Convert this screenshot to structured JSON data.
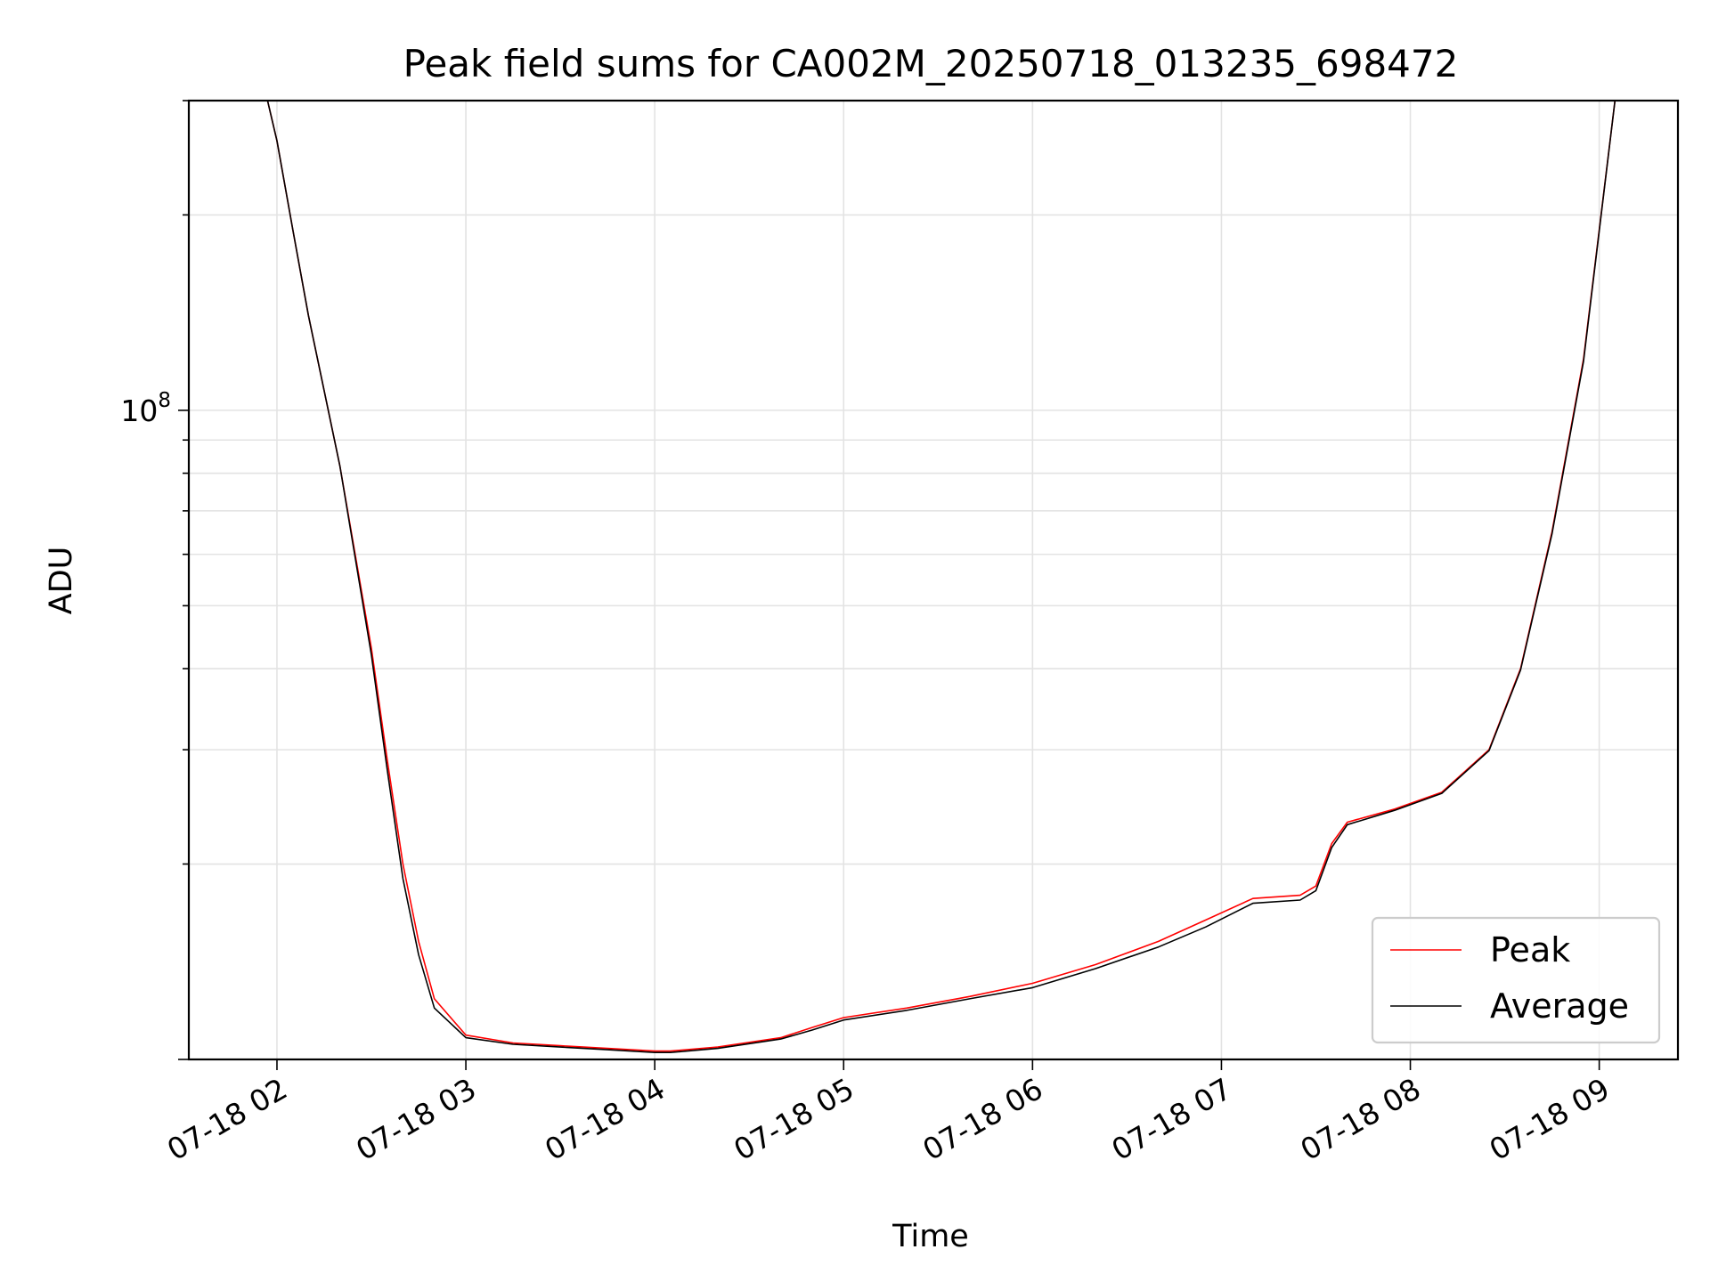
{
  "chart_data": {
    "type": "line",
    "title": "Peak field sums for CA002M_20250718_013235_698472",
    "xlabel": "Time",
    "ylabel": "ADU",
    "y_scale": "log",
    "ylim": [
      10000000.0,
      300000000.0
    ],
    "xlim": [
      "2025-07-18 01:32",
      "2025-07-18 09:25"
    ],
    "x_tick_labels": [
      "07-18 02",
      "07-18 03",
      "07-18 04",
      "07-18 05",
      "07-18 06",
      "07-18 07",
      "07-18 08",
      "07-18 09"
    ],
    "x_ticks": [
      "2025-07-18 02:00",
      "2025-07-18 03:00",
      "2025-07-18 04:00",
      "2025-07-18 05:00",
      "2025-07-18 06:00",
      "2025-07-18 07:00",
      "2025-07-18 08:00",
      "2025-07-18 09:00"
    ],
    "y_tick_labels": [
      {
        "base": "10",
        "exp": "8",
        "value": 100000000
      }
    ],
    "grid": true,
    "legend_position": "lower-right",
    "series": [
      {
        "name": "Peak",
        "color": "#ff0000",
        "x": [
          "2025-07-18 01:32",
          "2025-07-18 01:57",
          "2025-07-18 02:00",
          "2025-07-18 02:05",
          "2025-07-18 02:10",
          "2025-07-18 02:20",
          "2025-07-18 02:30",
          "2025-07-18 02:35",
          "2025-07-18 02:40",
          "2025-07-18 02:45",
          "2025-07-18 02:50",
          "2025-07-18 03:00",
          "2025-07-18 03:15",
          "2025-07-18 03:30",
          "2025-07-18 03:45",
          "2025-07-18 04:00",
          "2025-07-18 04:05",
          "2025-07-18 04:20",
          "2025-07-18 04:40",
          "2025-07-18 04:50",
          "2025-07-18 05:00",
          "2025-07-18 05:20",
          "2025-07-18 05:40",
          "2025-07-18 06:00",
          "2025-07-18 06:20",
          "2025-07-18 06:40",
          "2025-07-18 06:55",
          "2025-07-18 07:10",
          "2025-07-18 07:25",
          "2025-07-18 07:30",
          "2025-07-18 07:35",
          "2025-07-18 07:40",
          "2025-07-18 07:55",
          "2025-07-18 08:10",
          "2025-07-18 08:25",
          "2025-07-18 08:35",
          "2025-07-18 08:45",
          "2025-07-18 08:55",
          "2025-07-18 09:05",
          "2025-07-18 09:25"
        ],
        "values": [
          300000000,
          300000000,
          260000000,
          190000000,
          140000000,
          82000000,
          43000000,
          29000000,
          20000000,
          15200000,
          12400000,
          10900000,
          10600000,
          10500000,
          10400000,
          10300000,
          10300000,
          10450000,
          10800000,
          11200000,
          11600000,
          12000000,
          12500000,
          13100000,
          14000000,
          15200000,
          16400000,
          17700000,
          17900000,
          18500000,
          21500000,
          23200000,
          24300000,
          25800000,
          30000000,
          40000000,
          65000000,
          120000000,
          300000000,
          300000000
        ]
      },
      {
        "name": "Average",
        "color": "#000000",
        "x": [
          "2025-07-18 01:32",
          "2025-07-18 01:57",
          "2025-07-18 02:00",
          "2025-07-18 02:05",
          "2025-07-18 02:10",
          "2025-07-18 02:20",
          "2025-07-18 02:30",
          "2025-07-18 02:35",
          "2025-07-18 02:40",
          "2025-07-18 02:45",
          "2025-07-18 02:50",
          "2025-07-18 03:00",
          "2025-07-18 03:15",
          "2025-07-18 03:30",
          "2025-07-18 03:45",
          "2025-07-18 04:00",
          "2025-07-18 04:05",
          "2025-07-18 04:20",
          "2025-07-18 04:40",
          "2025-07-18 04:50",
          "2025-07-18 05:00",
          "2025-07-18 05:20",
          "2025-07-18 05:40",
          "2025-07-18 06:00",
          "2025-07-18 06:20",
          "2025-07-18 06:40",
          "2025-07-18 06:55",
          "2025-07-18 07:10",
          "2025-07-18 07:25",
          "2025-07-18 07:30",
          "2025-07-18 07:35",
          "2025-07-18 07:40",
          "2025-07-18 07:55",
          "2025-07-18 08:10",
          "2025-07-18 08:25",
          "2025-07-18 08:35",
          "2025-07-18 08:45",
          "2025-07-18 08:55",
          "2025-07-18 09:05",
          "2025-07-18 09:25"
        ],
        "values": [
          300000000,
          300000000,
          260000000,
          190000000,
          140000000,
          82000000,
          42000000,
          28000000,
          19000000,
          14500000,
          12000000,
          10800000,
          10550000,
          10450000,
          10350000,
          10250000,
          10250000,
          10400000,
          10750000,
          11100000,
          11500000,
          11900000,
          12400000,
          12900000,
          13800000,
          14900000,
          16000000,
          17400000,
          17600000,
          18200000,
          21200000,
          23000000,
          24200000,
          25700000,
          29900000,
          39800000,
          64500000,
          119000000,
          300000000,
          300000000
        ]
      }
    ]
  }
}
